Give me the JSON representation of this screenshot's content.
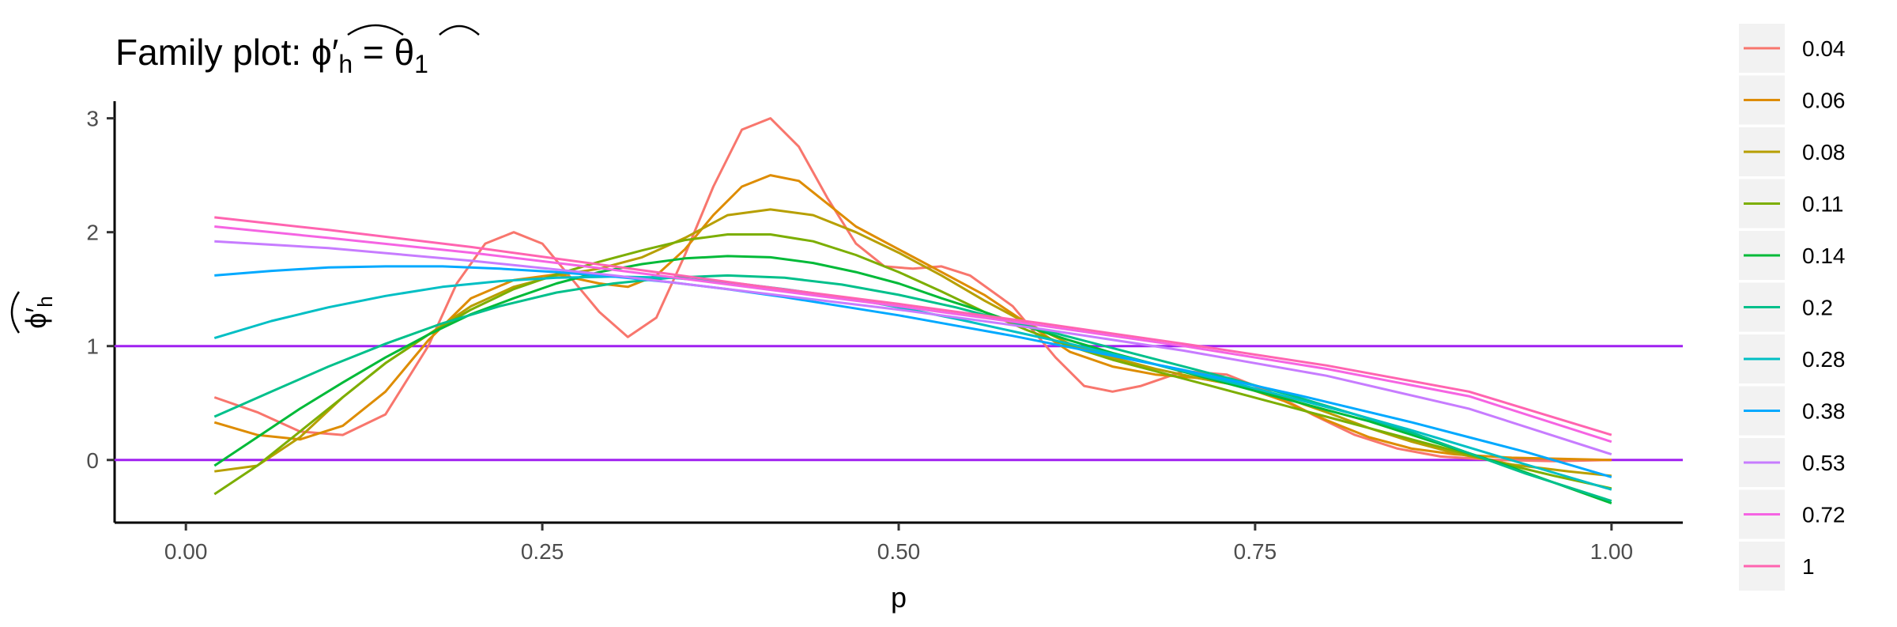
{
  "chart_data": {
    "type": "line",
    "title": "Family plot: ",
    "title_math": {
      "lhs": "ϕ′",
      "lhs_sub": "h",
      "eq": " = ",
      "rhs": "θ",
      "rhs_sub": "1"
    },
    "xlabel": "p",
    "ylabel": {
      "main": "ϕ′",
      "sub": "h"
    },
    "xlim": [
      -0.05,
      1.05
    ],
    "ylim": [
      -0.55,
      3.15
    ],
    "xticks": [
      0,
      0.25,
      0.5,
      0.75,
      1
    ],
    "xtick_labels": [
      "0.00",
      "0.25",
      "0.50",
      "0.75",
      "1.00"
    ],
    "yticks": [
      0,
      1,
      2,
      3
    ],
    "ytick_labels": [
      "0",
      "1",
      "2",
      "3"
    ],
    "hlines": [
      {
        "y": 1,
        "color": "#A020F0"
      },
      {
        "y": 0,
        "color": "#A020F0"
      }
    ],
    "grid": false,
    "legend_position": "right",
    "series": [
      {
        "name": "0.04",
        "color": "#F8766D",
        "x": [
          0.02,
          0.05,
          0.08,
          0.11,
          0.14,
          0.17,
          0.19,
          0.21,
          0.23,
          0.25,
          0.27,
          0.29,
          0.31,
          0.33,
          0.35,
          0.37,
          0.39,
          0.41,
          0.43,
          0.45,
          0.47,
          0.49,
          0.51,
          0.53,
          0.55,
          0.58,
          0.61,
          0.63,
          0.65,
          0.67,
          0.7,
          0.73,
          0.76,
          0.79,
          0.82,
          0.85,
          0.88,
          0.92,
          0.96,
          1.0
        ],
        "y": [
          0.55,
          0.42,
          0.25,
          0.22,
          0.4,
          1.0,
          1.55,
          1.9,
          2.0,
          1.9,
          1.6,
          1.3,
          1.08,
          1.25,
          1.8,
          2.4,
          2.9,
          3.0,
          2.75,
          2.3,
          1.9,
          1.7,
          1.68,
          1.7,
          1.62,
          1.35,
          0.9,
          0.65,
          0.6,
          0.65,
          0.78,
          0.75,
          0.6,
          0.4,
          0.22,
          0.1,
          0.03,
          0.0,
          -0.01,
          0.0
        ]
      },
      {
        "name": "0.06",
        "color": "#DE8C00",
        "x": [
          0.02,
          0.05,
          0.08,
          0.11,
          0.14,
          0.17,
          0.2,
          0.23,
          0.26,
          0.29,
          0.31,
          0.33,
          0.35,
          0.37,
          0.39,
          0.41,
          0.43,
          0.45,
          0.47,
          0.5,
          0.53,
          0.56,
          0.59,
          0.62,
          0.65,
          0.68,
          0.71,
          0.74,
          0.77,
          0.8,
          0.83,
          0.86,
          0.89,
          0.93,
          1.0
        ],
        "y": [
          0.33,
          0.22,
          0.18,
          0.3,
          0.6,
          1.05,
          1.42,
          1.58,
          1.63,
          1.55,
          1.52,
          1.62,
          1.85,
          2.15,
          2.4,
          2.5,
          2.45,
          2.25,
          2.05,
          1.85,
          1.65,
          1.45,
          1.2,
          0.95,
          0.82,
          0.75,
          0.72,
          0.65,
          0.52,
          0.35,
          0.2,
          0.1,
          0.05,
          0.02,
          0.0
        ]
      },
      {
        "name": "0.08",
        "color": "#B79F00",
        "x": [
          0.02,
          0.05,
          0.08,
          0.11,
          0.14,
          0.17,
          0.2,
          0.23,
          0.26,
          0.29,
          0.32,
          0.35,
          0.38,
          0.41,
          0.44,
          0.47,
          0.5,
          0.53,
          0.56,
          0.59,
          0.62,
          0.65,
          0.68,
          0.71,
          0.74,
          0.77,
          0.8,
          0.83,
          0.86,
          0.89,
          0.93,
          0.97,
          1.0
        ],
        "y": [
          -0.1,
          -0.05,
          0.2,
          0.55,
          0.85,
          1.1,
          1.35,
          1.52,
          1.62,
          1.68,
          1.78,
          1.95,
          2.15,
          2.2,
          2.15,
          2.0,
          1.82,
          1.62,
          1.4,
          1.2,
          1.02,
          0.9,
          0.8,
          0.72,
          0.65,
          0.55,
          0.42,
          0.28,
          0.16,
          0.06,
          -0.04,
          -0.1,
          -0.14
        ]
      },
      {
        "name": "0.11",
        "color": "#7CAE00",
        "x": [
          0.02,
          0.05,
          0.08,
          0.11,
          0.14,
          0.17,
          0.2,
          0.23,
          0.26,
          0.29,
          0.32,
          0.35,
          0.38,
          0.41,
          0.44,
          0.47,
          0.5,
          0.53,
          0.56,
          0.59,
          0.62,
          0.65,
          0.68,
          0.71,
          0.74,
          0.77,
          0.8,
          0.83,
          0.86,
          0.89,
          0.92,
          0.96,
          1.0
        ],
        "y": [
          -0.3,
          -0.05,
          0.25,
          0.55,
          0.85,
          1.1,
          1.32,
          1.5,
          1.63,
          1.74,
          1.84,
          1.93,
          1.98,
          1.98,
          1.92,
          1.8,
          1.65,
          1.48,
          1.3,
          1.14,
          1.0,
          0.88,
          0.78,
          0.68,
          0.58,
          0.48,
          0.38,
          0.28,
          0.18,
          0.08,
          -0.02,
          -0.14,
          -0.25
        ]
      },
      {
        "name": "0.14",
        "color": "#00BA38",
        "x": [
          0.02,
          0.05,
          0.08,
          0.11,
          0.14,
          0.17,
          0.2,
          0.23,
          0.26,
          0.29,
          0.32,
          0.35,
          0.38,
          0.41,
          0.44,
          0.47,
          0.5,
          0.53,
          0.56,
          0.59,
          0.62,
          0.65,
          0.68,
          0.71,
          0.74,
          0.77,
          0.8,
          0.83,
          0.86,
          0.89,
          0.92,
          0.96,
          1.0
        ],
        "y": [
          -0.05,
          0.2,
          0.45,
          0.68,
          0.9,
          1.1,
          1.28,
          1.42,
          1.55,
          1.65,
          1.72,
          1.77,
          1.79,
          1.78,
          1.73,
          1.65,
          1.55,
          1.42,
          1.3,
          1.17,
          1.05,
          0.94,
          0.84,
          0.74,
          0.64,
          0.54,
          0.44,
          0.34,
          0.22,
          0.1,
          -0.02,
          -0.2,
          -0.38
        ]
      },
      {
        "name": "0.2",
        "color": "#00C08B",
        "x": [
          0.02,
          0.06,
          0.1,
          0.14,
          0.18,
          0.22,
          0.26,
          0.3,
          0.34,
          0.38,
          0.42,
          0.46,
          0.5,
          0.54,
          0.58,
          0.62,
          0.66,
          0.7,
          0.74,
          0.78,
          0.82,
          0.86,
          0.9,
          0.94,
          1.0
        ],
        "y": [
          0.38,
          0.6,
          0.82,
          1.02,
          1.2,
          1.35,
          1.47,
          1.55,
          1.6,
          1.62,
          1.6,
          1.54,
          1.45,
          1.34,
          1.21,
          1.08,
          0.95,
          0.82,
          0.69,
          0.55,
          0.4,
          0.24,
          0.06,
          -0.12,
          -0.36
        ]
      },
      {
        "name": "0.28",
        "color": "#00BFC4",
        "x": [
          0.02,
          0.06,
          0.1,
          0.14,
          0.18,
          0.22,
          0.26,
          0.3,
          0.34,
          0.38,
          0.42,
          0.46,
          0.5,
          0.54,
          0.58,
          0.62,
          0.66,
          0.7,
          0.74,
          0.78,
          0.82,
          0.86,
          0.9,
          0.94,
          1.0
        ],
        "y": [
          1.07,
          1.22,
          1.34,
          1.44,
          1.52,
          1.57,
          1.6,
          1.61,
          1.6,
          1.56,
          1.5,
          1.43,
          1.34,
          1.24,
          1.13,
          1.02,
          0.9,
          0.78,
          0.66,
          0.53,
          0.4,
          0.26,
          0.11,
          -0.04,
          -0.26
        ]
      },
      {
        "name": "0.38",
        "color": "#00A9FF",
        "x": [
          0.02,
          0.06,
          0.1,
          0.14,
          0.18,
          0.22,
          0.26,
          0.3,
          0.34,
          0.38,
          0.42,
          0.46,
          0.5,
          0.54,
          0.58,
          0.62,
          0.66,
          0.7,
          0.74,
          0.78,
          0.82,
          0.86,
          0.9,
          0.94,
          1.0
        ],
        "y": [
          1.62,
          1.66,
          1.69,
          1.7,
          1.7,
          1.68,
          1.65,
          1.61,
          1.56,
          1.5,
          1.43,
          1.35,
          1.27,
          1.18,
          1.09,
          0.99,
          0.89,
          0.79,
          0.68,
          0.57,
          0.45,
          0.33,
          0.2,
          0.07,
          -0.15
        ]
      },
      {
        "name": "0.53",
        "color": "#C77CFF",
        "x": [
          0.02,
          0.1,
          0.2,
          0.3,
          0.4,
          0.5,
          0.6,
          0.7,
          0.8,
          0.9,
          1.0
        ],
        "y": [
          1.92,
          1.86,
          1.75,
          1.62,
          1.47,
          1.32,
          1.15,
          0.96,
          0.74,
          0.45,
          0.05
        ]
      },
      {
        "name": "0.72",
        "color": "#F564E3",
        "x": [
          0.02,
          0.1,
          0.2,
          0.3,
          0.4,
          0.5,
          0.6,
          0.7,
          0.8,
          0.9,
          1.0
        ],
        "y": [
          2.05,
          1.95,
          1.82,
          1.67,
          1.51,
          1.35,
          1.18,
          1.0,
          0.8,
          0.56,
          0.16
        ]
      },
      {
        "name": "1",
        "color": "#FF64B0",
        "x": [
          0.02,
          0.1,
          0.2,
          0.3,
          0.4,
          0.5,
          0.6,
          0.7,
          0.8,
          0.9,
          1.0
        ],
        "y": [
          2.13,
          2.02,
          1.87,
          1.7,
          1.53,
          1.37,
          1.2,
          1.02,
          0.83,
          0.6,
          0.22
        ]
      }
    ]
  }
}
